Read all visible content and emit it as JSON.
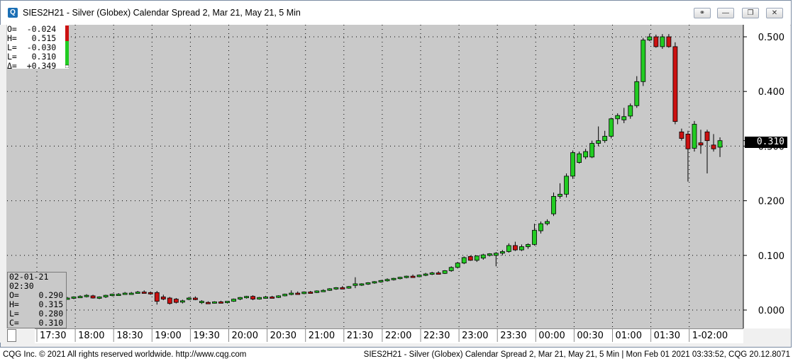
{
  "window": {
    "title": "SIES2H21 - Silver (Globex) Calendar Spread 2, Mar 21, May 21, 5 Min",
    "app_icon_glyph": "Q"
  },
  "ohlc_summary": {
    "rows": [
      "O=  -0.024",
      "H=   0.515",
      "L=  -0.030",
      "L=   0.310",
      "Δ=  +0.349"
    ]
  },
  "cursor_box": {
    "date": "02-01-21",
    "time": "02:30",
    "rows": [
      "O=    0.290",
      "H=    0.315",
      "L=    0.280",
      "C=    0.310"
    ]
  },
  "last_price_label": "0.310",
  "status_bar": {
    "left": "CQG Inc. © 2021 All rights reserved worldwide. http://www.cqg.com",
    "right": "SIES2H21 - Silver (Globex) Calendar Spread 2, Mar 21, May 21, 5 Min | Mon Feb 01 2021 03:33:52, CQG 20.12.8071"
  },
  "colors": {
    "up": "#22cc22",
    "down": "#cc1111",
    "plot_bg": "#c9c9c9",
    "grid": "#000000"
  },
  "chart_data": {
    "type": "candlestick",
    "ylim": [
      -0.02,
      0.515
    ],
    "yticks": [
      "0.500",
      "0.400",
      "0.300",
      "0.200",
      "0.100",
      "0.000"
    ],
    "xticks": [
      "17:30",
      "18:00",
      "18:30",
      "19:00",
      "19:30",
      "20:00",
      "20:30",
      "21:00",
      "21:30",
      "22:00",
      "22:30",
      "23:00",
      "23:30",
      "00:00",
      "00:30",
      "01:00",
      "01:30",
      "1-02:00"
    ],
    "grid": true,
    "candles": [
      [
        0.021,
        0.024,
        0.019,
        0.022
      ],
      [
        0.022,
        0.025,
        0.02,
        0.024
      ],
      [
        0.024,
        0.027,
        0.022,
        0.025
      ],
      [
        0.025,
        0.029,
        0.023,
        0.027
      ],
      [
        0.026,
        0.028,
        0.021,
        0.022
      ],
      [
        0.022,
        0.025,
        0.02,
        0.024
      ],
      [
        0.024,
        0.028,
        0.022,
        0.027
      ],
      [
        0.027,
        0.03,
        0.025,
        0.029
      ],
      [
        0.029,
        0.031,
        0.027,
        0.029
      ],
      [
        0.029,
        0.033,
        0.028,
        0.031
      ],
      [
        0.031,
        0.033,
        0.029,
        0.031
      ],
      [
        0.031,
        0.035,
        0.03,
        0.033
      ],
      [
        0.033,
        0.036,
        0.031,
        0.032
      ],
      [
        0.032,
        0.034,
        0.028,
        0.03
      ],
      [
        0.032,
        0.035,
        0.01,
        0.016
      ],
      [
        0.024,
        0.028,
        0.018,
        0.02
      ],
      [
        0.022,
        0.024,
        0.01,
        0.012
      ],
      [
        0.02,
        0.022,
        0.012,
        0.014
      ],
      [
        0.016,
        0.019,
        0.012,
        0.017
      ],
      [
        0.02,
        0.024,
        0.018,
        0.022
      ],
      [
        0.022,
        0.025,
        0.018,
        0.019
      ],
      [
        0.014,
        0.018,
        0.011,
        0.016
      ],
      [
        0.014,
        0.016,
        0.012,
        0.013
      ],
      [
        0.013,
        0.016,
        0.012,
        0.015
      ],
      [
        0.015,
        0.017,
        0.013,
        0.014
      ],
      [
        0.014,
        0.016,
        0.012,
        0.016
      ],
      [
        0.016,
        0.021,
        0.015,
        0.02
      ],
      [
        0.02,
        0.024,
        0.018,
        0.023
      ],
      [
        0.023,
        0.026,
        0.021,
        0.025
      ],
      [
        0.025,
        0.027,
        0.018,
        0.02
      ],
      [
        0.02,
        0.024,
        0.019,
        0.023
      ],
      [
        0.022,
        0.026,
        0.021,
        0.024
      ],
      [
        0.024,
        0.026,
        0.022,
        0.023
      ],
      [
        0.023,
        0.027,
        0.022,
        0.026
      ],
      [
        0.026,
        0.03,
        0.025,
        0.029
      ],
      [
        0.029,
        0.036,
        0.027,
        0.031
      ],
      [
        0.031,
        0.034,
        0.029,
        0.03
      ],
      [
        0.03,
        0.034,
        0.029,
        0.033
      ],
      [
        0.033,
        0.035,
        0.031,
        0.032
      ],
      [
        0.032,
        0.036,
        0.031,
        0.035
      ],
      [
        0.035,
        0.038,
        0.033,
        0.036
      ],
      [
        0.036,
        0.04,
        0.035,
        0.039
      ],
      [
        0.039,
        0.042,
        0.037,
        0.041
      ],
      [
        0.041,
        0.044,
        0.039,
        0.04
      ],
      [
        0.04,
        0.044,
        0.039,
        0.043
      ],
      [
        0.045,
        0.06,
        0.04,
        0.048
      ],
      [
        0.046,
        0.049,
        0.044,
        0.048
      ],
      [
        0.048,
        0.051,
        0.046,
        0.05
      ],
      [
        0.05,
        0.053,
        0.048,
        0.052
      ],
      [
        0.052,
        0.055,
        0.05,
        0.054
      ],
      [
        0.054,
        0.058,
        0.052,
        0.056
      ],
      [
        0.056,
        0.059,
        0.054,
        0.058
      ],
      [
        0.058,
        0.061,
        0.056,
        0.06
      ],
      [
        0.06,
        0.063,
        0.058,
        0.062
      ],
      [
        0.062,
        0.065,
        0.06,
        0.061
      ],
      [
        0.061,
        0.065,
        0.06,
        0.064
      ],
      [
        0.064,
        0.068,
        0.062,
        0.066
      ],
      [
        0.066,
        0.07,
        0.064,
        0.068
      ],
      [
        0.068,
        0.071,
        0.066,
        0.067
      ],
      [
        0.067,
        0.073,
        0.066,
        0.072
      ],
      [
        0.072,
        0.08,
        0.07,
        0.078
      ],
      [
        0.078,
        0.088,
        0.076,
        0.086
      ],
      [
        0.086,
        0.098,
        0.084,
        0.096
      ],
      [
        0.098,
        0.1,
        0.09,
        0.091
      ],
      [
        0.091,
        0.1,
        0.088,
        0.099
      ],
      [
        0.095,
        0.103,
        0.092,
        0.101
      ],
      [
        0.1,
        0.104,
        0.098,
        0.103
      ],
      [
        0.1,
        0.106,
        0.08,
        0.104
      ],
      [
        0.104,
        0.11,
        0.1,
        0.107
      ],
      [
        0.107,
        0.122,
        0.105,
        0.118
      ],
      [
        0.118,
        0.125,
        0.108,
        0.11
      ],
      [
        0.11,
        0.12,
        0.108,
        0.116
      ],
      [
        0.116,
        0.122,
        0.112,
        0.12
      ],
      [
        0.12,
        0.158,
        0.118,
        0.146
      ],
      [
        0.145,
        0.162,
        0.14,
        0.158
      ],
      [
        0.158,
        0.166,
        0.155,
        0.162
      ],
      [
        0.176,
        0.215,
        0.172,
        0.208
      ],
      [
        0.208,
        0.232,
        0.204,
        0.212
      ],
      [
        0.212,
        0.25,
        0.206,
        0.245
      ],
      [
        0.245,
        0.292,
        0.24,
        0.288
      ],
      [
        0.27,
        0.29,
        0.268,
        0.286
      ],
      [
        0.28,
        0.295,
        0.276,
        0.29
      ],
      [
        0.28,
        0.31,
        0.278,
        0.305
      ],
      [
        0.305,
        0.336,
        0.3,
        0.31
      ],
      [
        0.31,
        0.328,
        0.306,
        0.318
      ],
      [
        0.318,
        0.352,
        0.314,
        0.35
      ],
      [
        0.35,
        0.36,
        0.34,
        0.356
      ],
      [
        0.348,
        0.37,
        0.342,
        0.354
      ],
      [
        0.355,
        0.378,
        0.35,
        0.374
      ],
      [
        0.374,
        0.428,
        0.37,
        0.418
      ],
      [
        0.418,
        0.498,
        0.41,
        0.494
      ],
      [
        0.494,
        0.506,
        0.492,
        0.5
      ],
      [
        0.5,
        0.504,
        0.48,
        0.482
      ],
      [
        0.482,
        0.505,
        0.478,
        0.5
      ],
      [
        0.5,
        0.505,
        0.48,
        0.482
      ],
      [
        0.482,
        0.49,
        0.34,
        0.345
      ],
      [
        0.326,
        0.332,
        0.31,
        0.314
      ],
      [
        0.322,
        0.328,
        0.235,
        0.295
      ],
      [
        0.296,
        0.346,
        0.29,
        0.34
      ],
      [
        0.306,
        0.33,
        0.286,
        0.302
      ],
      [
        0.326,
        0.33,
        0.25,
        0.31
      ],
      [
        0.302,
        0.322,
        0.29,
        0.295
      ],
      [
        0.298,
        0.316,
        0.28,
        0.31
      ]
    ]
  }
}
